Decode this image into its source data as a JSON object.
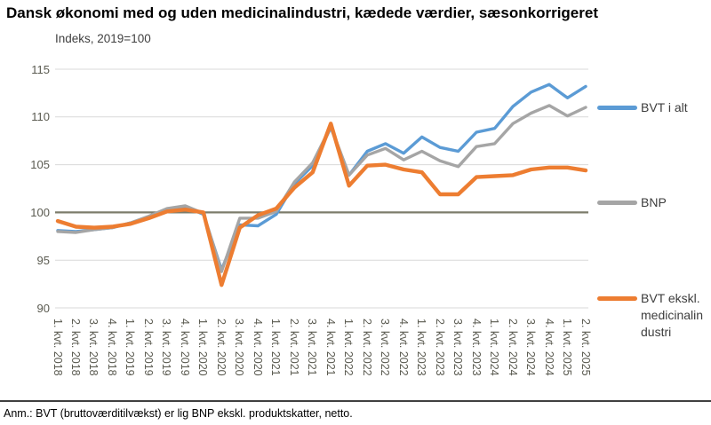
{
  "header": {
    "title": "Dansk økonomi med og uden medicinalindustri, kædede værdier, sæsonkorrigeret",
    "axis_note": "Indeks, 2019=100"
  },
  "footer": {
    "note": "Anm.: BVT (bruttoværditilvækst) er lig BNP ekskl. produktskatter, netto."
  },
  "legend": [
    {
      "label_lines": [
        "BVT i alt"
      ],
      "color": "#5B9BD5"
    },
    {
      "label_lines": [
        "BNP"
      ],
      "color": "#A5A5A5"
    },
    {
      "label_lines": [
        "BVT ekskl.",
        "medicinalin",
        "dustri"
      ],
      "color": "#ED7D31"
    }
  ],
  "colors": {
    "blue": "#5B9BD5",
    "gray": "#A5A5A5",
    "orange": "#ED7D31",
    "gridline": "#D9D9D9",
    "baseline": "#7C7C6B",
    "tick_text": "#5a5a50"
  },
  "chart_data": {
    "type": "line",
    "title": "Dansk økonomi med og uden medicinalindustri, kædede værdier, sæsonkorrigeret",
    "subtitle": "Indeks, 2019=100",
    "xlabel": "",
    "ylabel": "Indeks, 2019=100",
    "ylim": [
      90,
      115
    ],
    "y_ticks": [
      90,
      95,
      100,
      105,
      110,
      115
    ],
    "baseline": 100,
    "grid": true,
    "legend_position": "right",
    "categories": [
      "1. kvt. 2018",
      "2. kvt. 2018",
      "3. kvt. 2018",
      "4. kvt. 2018",
      "1. kvt. 2019",
      "2. kvt. 2019",
      "3. kvt. 2019",
      "4. kvt. 2019",
      "1. kvt. 2020",
      "2. kvt. 2020",
      "3. kvt. 2020",
      "4. kvt. 2020",
      "1. kvt. 2021",
      "2. kvt. 2021",
      "3. kvt. 2021",
      "4. kvt. 2021",
      "1. kvt. 2022",
      "2. kvt. 2022",
      "3. kvt. 2022",
      "4. kvt. 2022",
      "1. kvt. 2023",
      "2. kvt. 2023",
      "3. kvt. 2023",
      "4. kvt. 2023",
      "1. kvt. 2024",
      "2. kvt. 2024",
      "3. kvt. 2024",
      "4. kvt. 2024",
      "1. kvt. 2025",
      "2. kvt. 2025"
    ],
    "series": [
      {
        "name": "BVT i alt",
        "color": "#5B9BD5",
        "stroke_width": 3.4,
        "values": [
          98.1,
          98.0,
          98.2,
          98.4,
          98.9,
          99.5,
          100.3,
          100.6,
          99.8,
          94.0,
          98.7,
          98.6,
          99.8,
          103.0,
          104.9,
          108.9,
          103.9,
          106.4,
          107.2,
          106.2,
          107.9,
          106.8,
          106.4,
          108.4,
          108.8,
          111.1,
          112.6,
          113.4,
          112.0,
          113.2
        ]
      },
      {
        "name": "BNP",
        "color": "#A5A5A5",
        "stroke_width": 3.4,
        "values": [
          98.0,
          97.9,
          98.2,
          98.4,
          98.9,
          99.6,
          100.4,
          100.7,
          99.9,
          93.8,
          99.4,
          99.4,
          100.1,
          103.2,
          105.2,
          109.0,
          103.9,
          106.0,
          106.7,
          105.5,
          106.4,
          105.4,
          104.8,
          106.9,
          107.2,
          109.3,
          110.4,
          111.2,
          110.1,
          111.0
        ]
      },
      {
        "name": "BVT ekskl. medicinalindustri",
        "color": "#ED7D31",
        "stroke_width": 4.4,
        "values": [
          99.1,
          98.5,
          98.4,
          98.5,
          98.8,
          99.4,
          100.1,
          100.3,
          100.0,
          92.4,
          98.4,
          99.7,
          100.4,
          102.6,
          104.2,
          109.3,
          102.8,
          104.9,
          105.0,
          104.5,
          104.2,
          101.9,
          101.9,
          103.7,
          103.8,
          103.9,
          104.5,
          104.7,
          104.7,
          104.4
        ]
      }
    ]
  }
}
